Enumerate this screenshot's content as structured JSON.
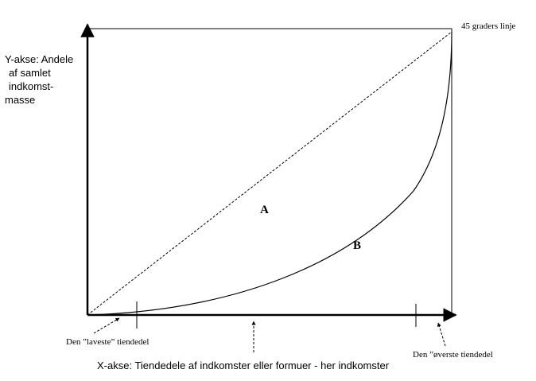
{
  "axes": {
    "y_label_lines": [
      "Y-akse: Andele",
      "af samlet",
      "indkomst-",
      "masse"
    ],
    "x_label": "X-akse: Tiendedele af indkomster eller formuer  -  her indkomster"
  },
  "annotations": {
    "equality_line": "45 graders linje",
    "lowest_decile": "Den ”laveste” tiendedel",
    "top_decile": "Den ”øverste tiendedel"
  },
  "areas": {
    "a": "A",
    "b": "B"
  },
  "colors": {
    "line": "#000000",
    "background": "#ffffff"
  }
}
